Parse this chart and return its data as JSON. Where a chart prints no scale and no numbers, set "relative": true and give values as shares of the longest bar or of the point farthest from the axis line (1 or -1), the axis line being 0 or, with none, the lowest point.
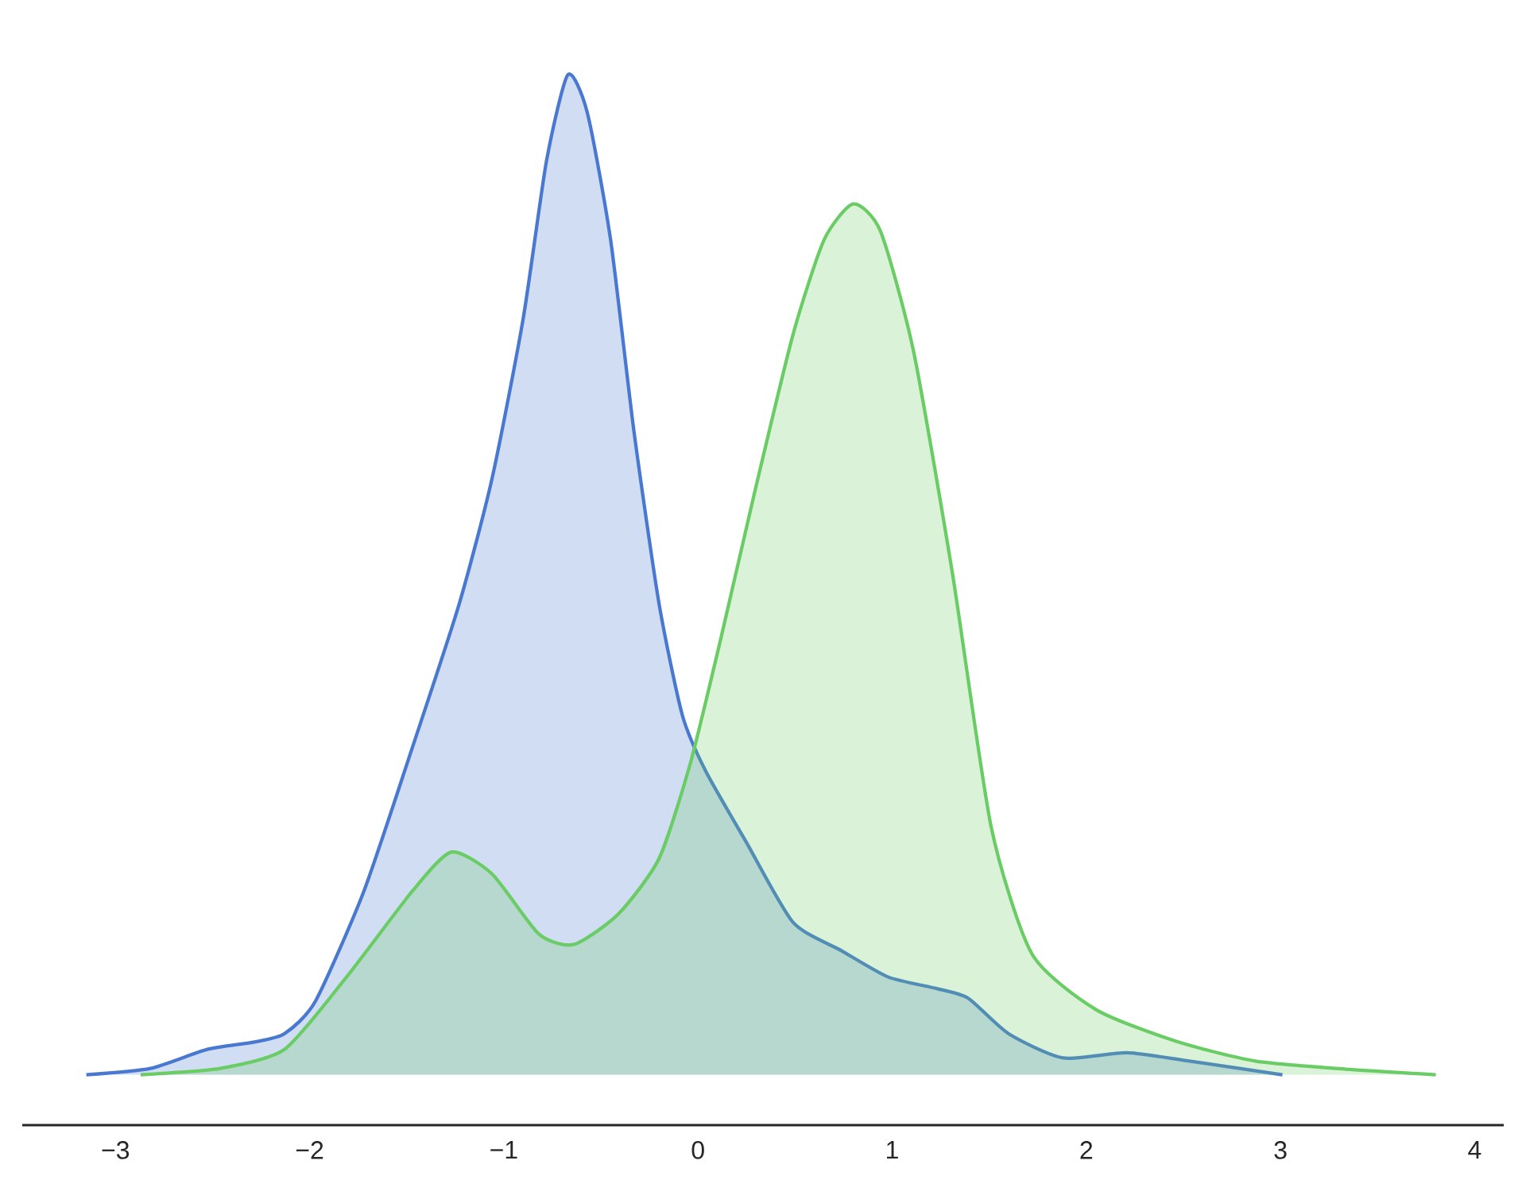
{
  "chart_data": {
    "type": "area",
    "relative": true,
    "grid": false,
    "xlim": [
      -3.48,
      4.15
    ],
    "xticks": [
      {
        "value": -3,
        "label": "−3"
      },
      {
        "value": -2,
        "label": "−2"
      },
      {
        "value": -1,
        "label": "−1"
      },
      0,
      1,
      2,
      3,
      4
    ],
    "series": [
      {
        "color": "#4878d0",
        "x": [
          -3.15,
          -2.82,
          -2.53,
          -2.29,
          -2.13,
          -1.97,
          -1.72,
          -1.47,
          -1.23,
          -1.06,
          -0.9,
          -0.78,
          -0.67,
          -0.57,
          -0.45,
          -0.33,
          -0.2,
          -0.08,
          0.04,
          0.25,
          0.49,
          0.74,
          0.98,
          1.23,
          1.39,
          1.6,
          1.88,
          2.21,
          2.53,
          3.01
        ],
        "values": [
          0.048,
          0.054,
          0.072,
          0.079,
          0.087,
          0.118,
          0.223,
          0.36,
          0.496,
          0.616,
          0.768,
          0.918,
          1.0,
          0.964,
          0.843,
          0.661,
          0.496,
          0.39,
          0.337,
          0.269,
          0.193,
          0.166,
          0.141,
          0.13,
          0.121,
          0.087,
          0.064,
          0.069,
          0.061,
          0.048
        ]
      },
      {
        "color": "#6acc64",
        "x": [
          -2.87,
          -2.46,
          -2.13,
          -1.81,
          -1.47,
          -1.27,
          -1.06,
          -0.82,
          -0.64,
          -0.41,
          -0.2,
          -0.04,
          0.12,
          0.29,
          0.49,
          0.65,
          0.8,
          0.94,
          1.11,
          1.31,
          1.51,
          1.72,
          2.05,
          2.46,
          2.87,
          3.36,
          3.8
        ],
        "values": [
          0.048,
          0.054,
          0.072,
          0.141,
          0.223,
          0.26,
          0.239,
          0.182,
          0.172,
          0.201,
          0.254,
          0.344,
          0.465,
          0.601,
          0.753,
          0.843,
          0.877,
          0.851,
          0.737,
          0.526,
          0.284,
          0.163,
          0.11,
          0.08,
          0.061,
          0.053,
          0.048
        ]
      }
    ]
  }
}
